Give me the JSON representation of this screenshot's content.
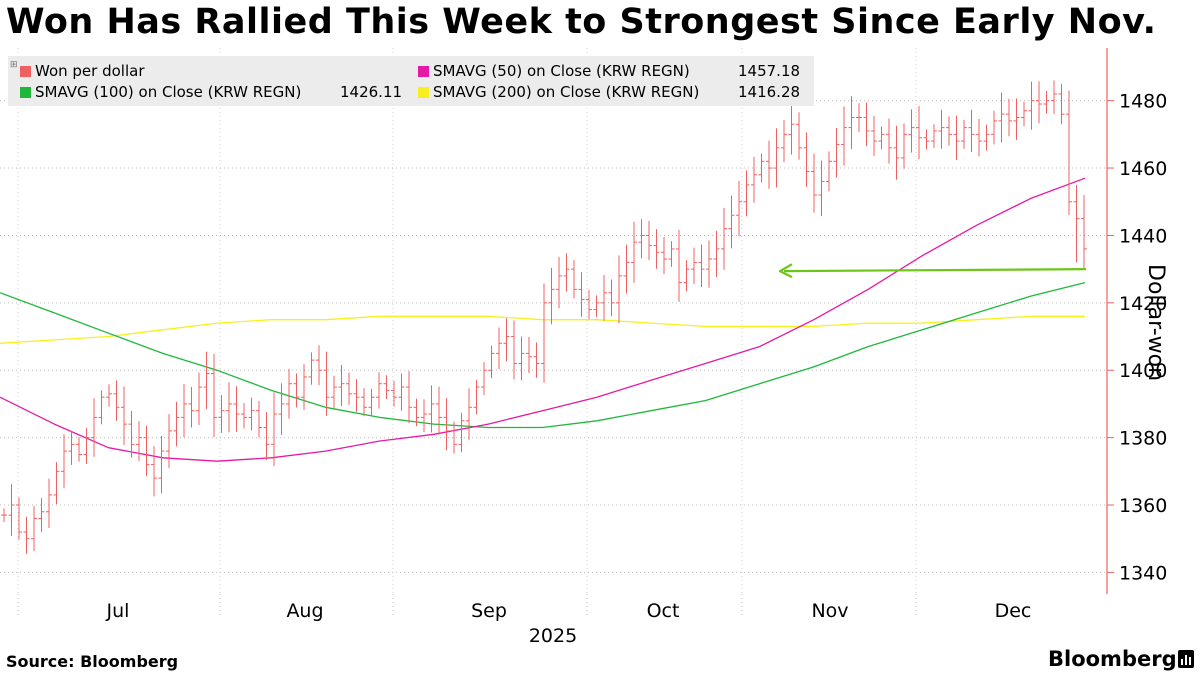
{
  "title": "Won Has Rallied This Week to Strongest Since Early Nov.",
  "legend": [
    {
      "label": "Won per dollar",
      "value": "",
      "color": "#f06060"
    },
    {
      "label": "SMAVG (50)  on Close (KRW REGN)",
      "value": "1457.18",
      "color": "#e619a6"
    },
    {
      "label": "SMAVG (100)  on Close (KRW REGN)",
      "value": "1426.11",
      "color": "#1fb83a"
    },
    {
      "label": "SMAVG (200)  on Close (KRW REGN)",
      "value": "1416.28",
      "color": "#f7f01e"
    }
  ],
  "footer": {
    "source": "Source: Bloomberg",
    "brand": "Bloomberg"
  },
  "chart_data": {
    "type": "line",
    "title": "Won Has Rallied This Week to Strongest Since Early Nov.",
    "ylabel": "Dollar-won",
    "y_axis_side": "right",
    "ylim": [
      1333,
      1498
    ],
    "y_ticks": [
      1340,
      1360,
      1380,
      1400,
      1420,
      1440,
      1460,
      1480
    ],
    "x_tick_labels": [
      "Jul",
      "Aug",
      "Sep",
      "Oct",
      "Nov",
      "Dec"
    ],
    "x_sub_label": "2025",
    "grid": true,
    "legend_position": "top-left",
    "annotation": {
      "type": "arrow",
      "color": "#6cc61a",
      "from": [
        "late Dec",
        1430
      ],
      "to": [
        "mid Oct",
        1430
      ]
    },
    "series": [
      {
        "name": "Won per dollar",
        "style": "ohlc-bars",
        "color": "#f06060",
        "values": [
          1357,
          1360,
          1352,
          1350,
          1356,
          1358,
          1363,
          1370,
          1376,
          1378,
          1375,
          1380,
          1386,
          1392,
          1393,
          1389,
          1384,
          1378,
          1380,
          1372,
          1368,
          1376,
          1382,
          1386,
          1390,
          1388,
          1395,
          1399,
          1386,
          1388,
          1390,
          1387,
          1386,
          1388,
          1383,
          1378,
          1387,
          1390,
          1396,
          1392,
          1398,
          1403,
          1400,
          1392,
          1395,
          1396,
          1393,
          1392,
          1389,
          1392,
          1396,
          1394,
          1392,
          1395,
          1389,
          1386,
          1387,
          1390,
          1386,
          1382,
          1378,
          1385,
          1389,
          1395,
          1400,
          1405,
          1408,
          1410,
          1402,
          1405,
          1404,
          1402,
          1420,
          1424,
          1428,
          1430,
          1424,
          1421,
          1418,
          1420,
          1423,
          1420,
          1428,
          1432,
          1438,
          1440,
          1437,
          1435,
          1433,
          1436,
          1426,
          1430,
          1432,
          1430,
          1433,
          1436,
          1442,
          1446,
          1450,
          1455,
          1458,
          1462,
          1460,
          1466,
          1470,
          1473,
          1466,
          1459,
          1452,
          1456,
          1462,
          1467,
          1472,
          1475,
          1475,
          1471,
          1468,
          1470,
          1466,
          1463,
          1470,
          1472,
          1469,
          1468,
          1471,
          1472,
          1470,
          1468,
          1472,
          1470,
          1468,
          1470,
          1474,
          1476,
          1474,
          1475,
          1477,
          1480,
          1479,
          1480,
          1482,
          1476,
          1450,
          1445,
          1436
        ]
      },
      {
        "name": "SMAVG (50)  on Close (KRW REGN)",
        "color": "#e619a6",
        "x_frac": [
          0,
          0.05,
          0.1,
          0.15,
          0.2,
          0.25,
          0.3,
          0.35,
          0.4,
          0.45,
          0.5,
          0.55,
          0.6,
          0.65,
          0.7,
          0.75,
          0.8,
          0.85,
          0.9,
          0.95,
          1
        ],
        "values": [
          1392,
          1384,
          1377,
          1374,
          1373,
          1374,
          1376,
          1379,
          1381,
          1384,
          1388,
          1392,
          1397,
          1402,
          1407,
          1415,
          1424,
          1434,
          1443,
          1451,
          1457
        ]
      },
      {
        "name": "SMAVG (100)  on Close (KRW REGN)",
        "color": "#1fb83a",
        "x_frac": [
          0,
          0.05,
          0.1,
          0.15,
          0.2,
          0.25,
          0.3,
          0.35,
          0.4,
          0.45,
          0.5,
          0.55,
          0.6,
          0.65,
          0.7,
          0.75,
          0.8,
          0.85,
          0.9,
          0.95,
          1
        ],
        "values": [
          1423,
          1417,
          1411,
          1405,
          1400,
          1394,
          1389,
          1386,
          1384,
          1383,
          1383,
          1385,
          1388,
          1391,
          1396,
          1401,
          1407,
          1412,
          1417,
          1422,
          1426
        ]
      },
      {
        "name": "SMAVG (200)  on Close (KRW REGN)",
        "color": "#f7f01e",
        "x_frac": [
          0,
          0.05,
          0.1,
          0.15,
          0.2,
          0.25,
          0.3,
          0.35,
          0.4,
          0.45,
          0.5,
          0.55,
          0.6,
          0.65,
          0.7,
          0.75,
          0.8,
          0.85,
          0.9,
          0.95,
          1
        ],
        "values": [
          1408,
          1409,
          1410,
          1412,
          1414,
          1415,
          1415,
          1416,
          1416,
          1416,
          1415,
          1415,
          1414,
          1413,
          1413,
          1413,
          1414,
          1414,
          1415,
          1416,
          1416
        ]
      }
    ]
  }
}
